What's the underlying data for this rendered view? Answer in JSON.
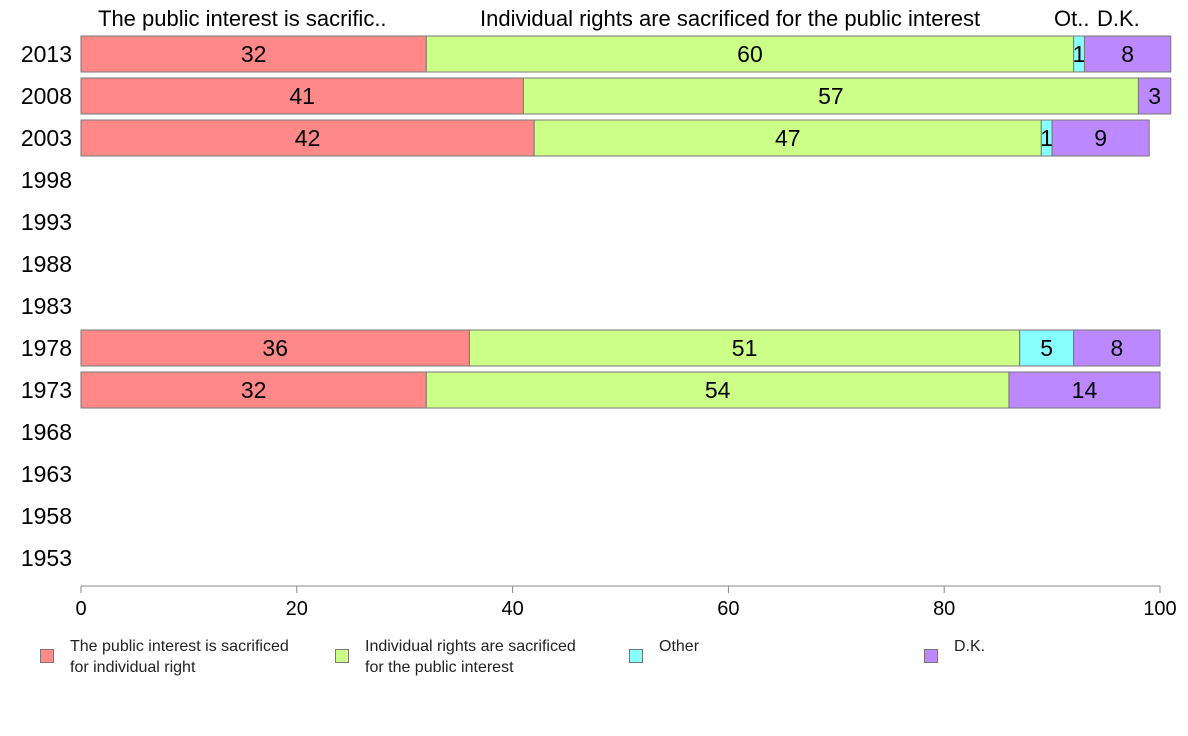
{
  "chart_data": {
    "type": "bar",
    "orientation": "horizontal",
    "stacked": true,
    "categories": [
      "2013",
      "2008",
      "2003",
      "1998",
      "1993",
      "1988",
      "1983",
      "1978",
      "1973",
      "1968",
      "1963",
      "1958",
      "1953"
    ],
    "series": [
      {
        "name": "The public interest is sacrificed for individual right",
        "color": "#ff8888",
        "values": [
          32,
          41,
          42,
          null,
          null,
          null,
          null,
          36,
          32,
          null,
          null,
          null,
          null
        ]
      },
      {
        "name": "Individual rights are sacrificed for the public interest",
        "color": "#ccff88",
        "values": [
          60,
          57,
          47,
          null,
          null,
          null,
          null,
          51,
          54,
          null,
          null,
          null,
          null
        ]
      },
      {
        "name": "Other",
        "color": "#88ffff",
        "values": [
          1,
          0,
          1,
          null,
          null,
          null,
          null,
          5,
          0,
          null,
          null,
          null,
          null
        ]
      },
      {
        "name": "D.K.",
        "color": "#bb88ff",
        "values": [
          8,
          3,
          9,
          null,
          null,
          null,
          null,
          8,
          14,
          null,
          null,
          null,
          null
        ]
      }
    ],
    "column_headers": [
      "The public interest is sacrific..",
      "Individual rights are sacrificed for the public interest",
      "Ot..",
      "D.K."
    ],
    "xlim": [
      0,
      100
    ],
    "xticks": [
      0,
      20,
      40,
      60,
      80,
      100
    ],
    "grid": false,
    "legend_position": "bottom"
  },
  "legend": [
    {
      "label": "The public interest is sacrificed\nfor individual right",
      "color": "#ff8888"
    },
    {
      "label": "Individual rights are sacrificed\nfor the public interest",
      "color": "#ccff88"
    },
    {
      "label": "Other",
      "color": "#88ffff"
    },
    {
      "label": "D.K.",
      "color": "#bb88ff"
    }
  ]
}
